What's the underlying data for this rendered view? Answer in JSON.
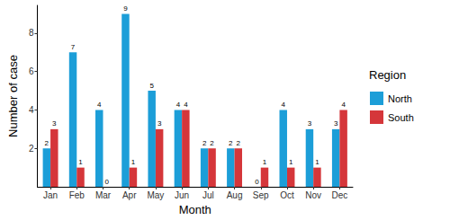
{
  "chart_data": {
    "type": "bar",
    "x_label": "Month",
    "y_label": "Number of case",
    "legend_title": "Region",
    "legend": "right",
    "categories": [
      "Jan",
      "Feb",
      "Mar",
      "Apr",
      "May",
      "Jun",
      "Jul",
      "Aug",
      "Sep",
      "Oct",
      "Nov",
      "Dec"
    ],
    "series": [
      {
        "name": "North",
        "color": "#1c9ed8",
        "values": [
          2,
          7,
          4,
          9,
          5,
          4,
          2,
          2,
          0,
          4,
          3,
          3
        ]
      },
      {
        "name": "South",
        "color": "#d5363a",
        "values": [
          3,
          1,
          0,
          1,
          3,
          4,
          2,
          2,
          1,
          1,
          1,
          4
        ]
      }
    ],
    "ylim": [
      0,
      9.45
    ],
    "yticks": [
      2,
      4,
      6,
      8
    ],
    "grid": false,
    "data_labels": true
  }
}
